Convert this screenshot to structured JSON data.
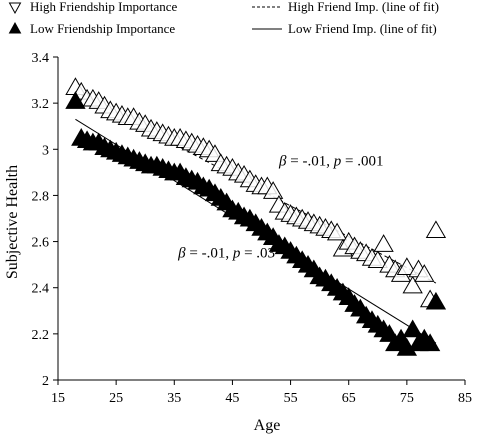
{
  "chart_data": {
    "type": "scatter",
    "xlabel": "Age",
    "ylabel": "Subjective Health",
    "xlim": [
      15,
      85
    ],
    "ylim": [
      2,
      3.4
    ],
    "xticks": [
      15,
      25,
      35,
      45,
      55,
      65,
      75,
      85
    ],
    "yticks": [
      2,
      2.2,
      2.4,
      2.6,
      2.8,
      3,
      3.2,
      3.4
    ],
    "ytick_labels": [
      "2",
      "2.2",
      "2.4",
      "2.6",
      "2.8",
      "3",
      "3.2",
      "3.4"
    ],
    "grid": false,
    "legend_position": "top",
    "colors": {
      "high": "#000000",
      "low": "#000000"
    },
    "series": [
      {
        "name": "High Friendship Importance",
        "marker": "open-triangle",
        "points": [
          [
            18,
            3.27
          ],
          [
            19,
            3.25
          ],
          [
            20,
            3.22
          ],
          [
            21,
            3.22
          ],
          [
            22,
            3.21
          ],
          [
            23,
            3.19
          ],
          [
            24,
            3.17
          ],
          [
            25,
            3.16
          ],
          [
            26,
            3.15
          ],
          [
            27,
            3.14
          ],
          [
            28,
            3.14
          ],
          [
            29,
            3.12
          ],
          [
            30,
            3.11
          ],
          [
            31,
            3.09
          ],
          [
            32,
            3.08
          ],
          [
            33,
            3.07
          ],
          [
            34,
            3.06
          ],
          [
            35,
            3.05
          ],
          [
            36,
            3.05
          ],
          [
            37,
            3.04
          ],
          [
            38,
            3.03
          ],
          [
            39,
            3.02
          ],
          [
            40,
            3.01
          ],
          [
            41,
            3.0
          ],
          [
            42,
            2.98
          ],
          [
            43,
            2.94
          ],
          [
            44,
            2.93
          ],
          [
            45,
            2.92
          ],
          [
            46,
            2.9
          ],
          [
            47,
            2.89
          ],
          [
            48,
            2.87
          ],
          [
            49,
            2.85
          ],
          [
            50,
            2.84
          ],
          [
            51,
            2.84
          ],
          [
            52,
            2.82
          ],
          [
            53,
            2.76
          ],
          [
            54,
            2.73
          ],
          [
            55,
            2.72
          ],
          [
            56,
            2.71
          ],
          [
            57,
            2.7
          ],
          [
            58,
            2.69
          ],
          [
            59,
            2.68
          ],
          [
            60,
            2.67
          ],
          [
            61,
            2.66
          ],
          [
            62,
            2.65
          ],
          [
            63,
            2.64
          ],
          [
            64,
            2.57
          ],
          [
            65,
            2.6
          ],
          [
            66,
            2.58
          ],
          [
            67,
            2.56
          ],
          [
            68,
            2.55
          ],
          [
            69,
            2.53
          ],
          [
            70,
            2.52
          ],
          [
            71,
            2.59
          ],
          [
            72,
            2.5
          ],
          [
            73,
            2.48
          ],
          [
            74,
            2.46
          ],
          [
            75,
            2.49
          ],
          [
            76,
            2.41
          ],
          [
            77,
            2.48
          ],
          [
            78,
            2.46
          ],
          [
            79,
            2.35
          ],
          [
            80,
            2.65
          ]
        ],
        "fit": {
          "x": [
            18,
            80
          ],
          "y": [
            3.25,
            2.42
          ],
          "style": "dashed",
          "legend_label": "High Friend Imp. (line of fit)"
        },
        "annotation": {
          "beta": "-.01",
          "p": ".001",
          "at": [
            62,
            2.93
          ]
        }
      },
      {
        "name": "Low Friendship Importance",
        "marker": "filled-triangle",
        "points": [
          [
            18,
            3.21
          ],
          [
            19,
            3.05
          ],
          [
            20,
            3.04
          ],
          [
            21,
            3.03
          ],
          [
            22,
            3.03
          ],
          [
            23,
            3.01
          ],
          [
            24,
            3.0
          ],
          [
            25,
            2.99
          ],
          [
            26,
            2.98
          ],
          [
            27,
            2.97
          ],
          [
            28,
            2.96
          ],
          [
            29,
            2.95
          ],
          [
            30,
            2.94
          ],
          [
            31,
            2.93
          ],
          [
            32,
            2.93
          ],
          [
            33,
            2.92
          ],
          [
            34,
            2.91
          ],
          [
            35,
            2.9
          ],
          [
            36,
            2.9
          ],
          [
            37,
            2.88
          ],
          [
            38,
            2.87
          ],
          [
            39,
            2.86
          ],
          [
            40,
            2.84
          ],
          [
            41,
            2.83
          ],
          [
            42,
            2.81
          ],
          [
            43,
            2.79
          ],
          [
            44,
            2.77
          ],
          [
            45,
            2.74
          ],
          [
            46,
            2.73
          ],
          [
            47,
            2.71
          ],
          [
            48,
            2.7
          ],
          [
            49,
            2.68
          ],
          [
            50,
            2.66
          ],
          [
            51,
            2.64
          ],
          [
            52,
            2.62
          ],
          [
            53,
            2.59
          ],
          [
            54,
            2.58
          ],
          [
            55,
            2.56
          ],
          [
            56,
            2.54
          ],
          [
            57,
            2.52
          ],
          [
            58,
            2.5
          ],
          [
            59,
            2.48
          ],
          [
            60,
            2.45
          ],
          [
            61,
            2.44
          ],
          [
            62,
            2.42
          ],
          [
            63,
            2.4
          ],
          [
            64,
            2.38
          ],
          [
            65,
            2.36
          ],
          [
            66,
            2.33
          ],
          [
            67,
            2.31
          ],
          [
            68,
            2.28
          ],
          [
            69,
            2.26
          ],
          [
            70,
            2.24
          ],
          [
            71,
            2.22
          ],
          [
            72,
            2.2
          ],
          [
            73,
            2.16
          ],
          [
            74,
            2.18
          ],
          [
            75,
            2.14
          ],
          [
            76,
            2.22
          ],
          [
            77,
            2.16
          ],
          [
            78,
            2.18
          ],
          [
            79,
            2.16
          ],
          [
            80,
            2.34
          ]
        ],
        "fit": {
          "x": [
            18,
            80
          ],
          "y": [
            3.13,
            2.16
          ],
          "style": "solid",
          "legend_label": "Low Friend Imp. (line of fit)"
        },
        "annotation": {
          "beta": "-.01",
          "p": ".03",
          "at": [
            44,
            2.53
          ]
        }
      }
    ]
  }
}
